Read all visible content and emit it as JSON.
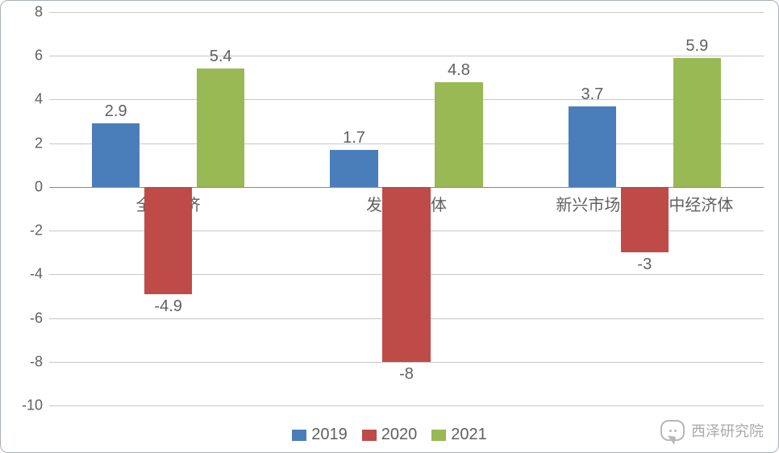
{
  "chart": {
    "type": "bar",
    "background_color": "#ffffff",
    "border_color": "#aab0b7",
    "grid_color": "#c7c7c7",
    "zero_line_color": "#8a8a8a",
    "text_color": "#606060",
    "label_fontsize": 20,
    "ytick_fontsize": 18,
    "categories": [
      "全球经济",
      "发达经济体",
      "新兴市场和发展中经济体"
    ],
    "series": [
      {
        "name": "2019",
        "color": "#4a7ebb",
        "values": [
          2.9,
          1.7,
          3.7
        ]
      },
      {
        "name": "2020",
        "color": "#be4b48",
        "values": [
          -4.9,
          -8,
          -3
        ]
      },
      {
        "name": "2021",
        "color": "#98b954",
        "values": [
          5.4,
          4.8,
          5.9
        ]
      }
    ],
    "data_label_texts": [
      [
        "2.9",
        "1.7",
        "3.7"
      ],
      [
        "-4.9",
        "-8",
        "-3"
      ],
      [
        "5.4",
        "4.8",
        "5.9"
      ]
    ],
    "y_axis": {
      "min": -10,
      "max": 8,
      "step": 2,
      "ticks": [
        8,
        6,
        4,
        2,
        0,
        -2,
        -4,
        -6,
        -8,
        -10
      ]
    },
    "bar_width_ratio": 0.2,
    "bar_gap_ratio": 0.02,
    "legend_fontsize": 20
  },
  "watermark": {
    "text": "西泽研究院",
    "color": "#a0a0a0"
  }
}
